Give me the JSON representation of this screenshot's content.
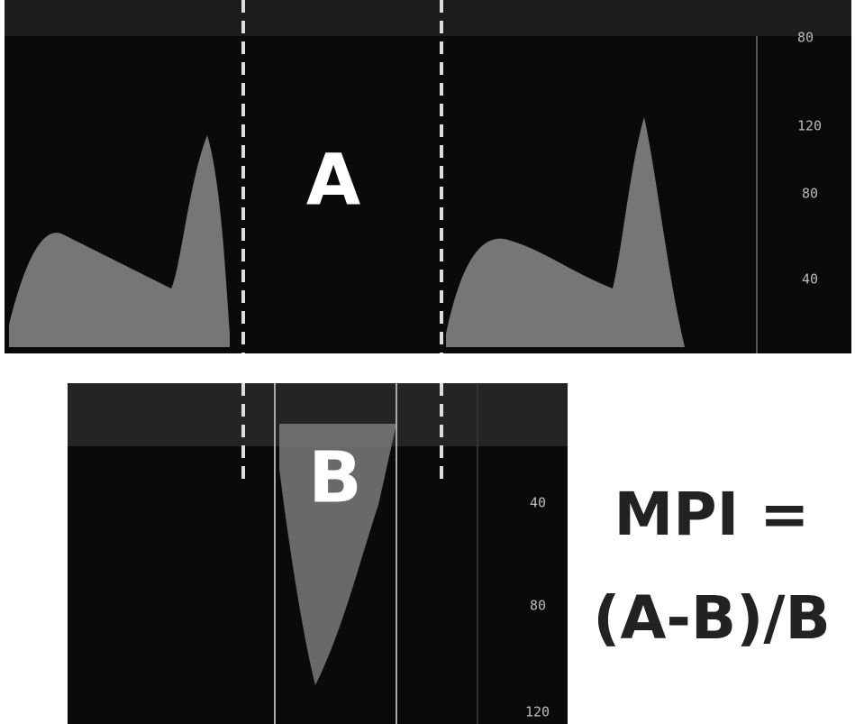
{
  "panel_a": {
    "label": "A",
    "scale": [
      "80",
      "120",
      "80",
      "40"
    ]
  },
  "panel_b": {
    "label": "B",
    "scale": [
      "40",
      "80",
      "120"
    ]
  },
  "formula": {
    "lhs": "MPI =",
    "rhs": "(A-B)/B"
  }
}
